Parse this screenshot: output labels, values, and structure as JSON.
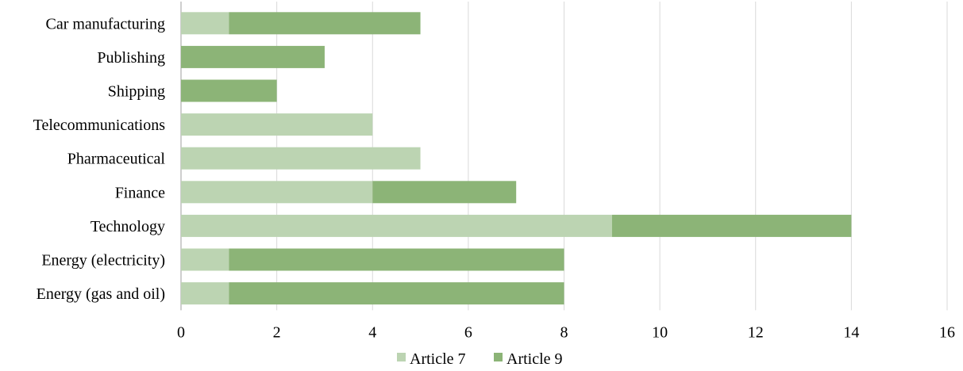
{
  "chart_data": {
    "type": "bar",
    "orientation": "horizontal",
    "stacked": true,
    "categories": [
      "Car manufacturing",
      "Publishing",
      "Shipping",
      "Telecommunications",
      "Pharmaceutical",
      "Finance",
      "Technology",
      "Energy (electricity)",
      "Energy (gas and oil)"
    ],
    "series": [
      {
        "name": "Article 7",
        "color": "#bcd4b2",
        "values": [
          1,
          0,
          0,
          4,
          5,
          4,
          9,
          1,
          1
        ]
      },
      {
        "name": "Article 9",
        "color": "#8cb477",
        "values": [
          4,
          3,
          2,
          0,
          0,
          3,
          5,
          7,
          7
        ]
      }
    ],
    "xlim": [
      0,
      16
    ],
    "xticks": [
      "0",
      "2",
      "4",
      "6",
      "8",
      "10",
      "12",
      "14",
      "16"
    ],
    "title": "",
    "xlabel": "",
    "ylabel": "",
    "grid": "vertical",
    "legend": "bottom-center",
    "gridline_color": "#d9d9d9"
  }
}
